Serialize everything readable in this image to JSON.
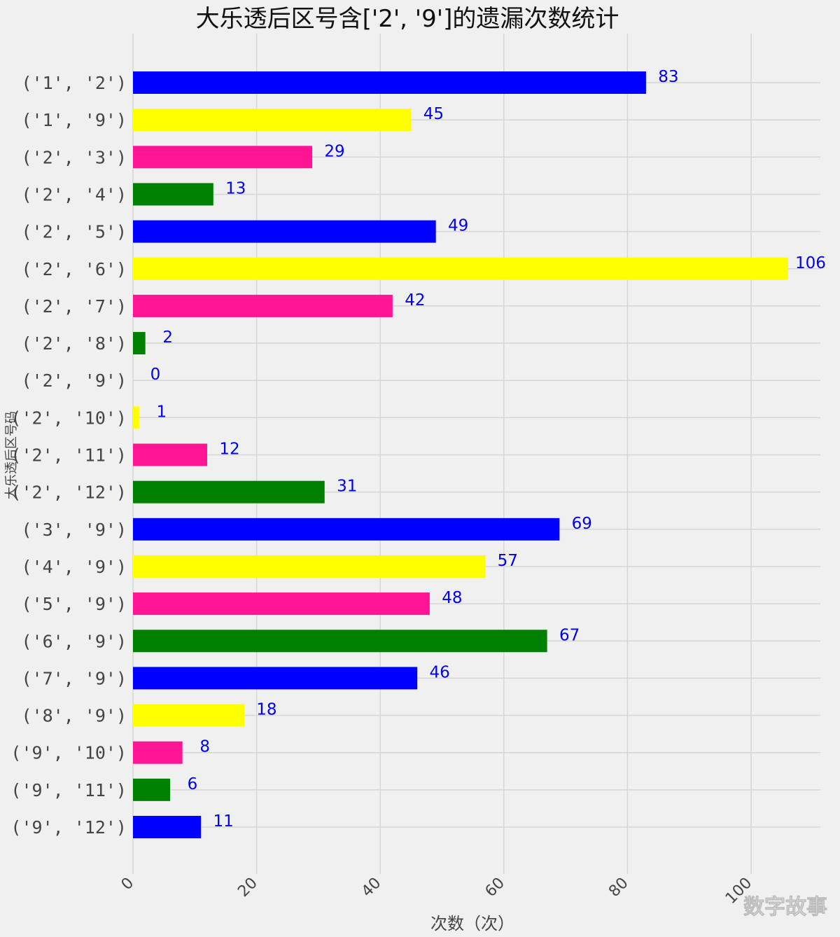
{
  "chart_data": {
    "type": "bar",
    "orientation": "horizontal",
    "title": "大乐透后区号含['2', '9']的遗漏次数统计",
    "xlabel": "次数（次）",
    "ylabel": "大乐透后区号码",
    "xlim": [
      0,
      111
    ],
    "xticks": [
      0,
      20,
      40,
      60,
      80,
      100
    ],
    "grid": true,
    "categories": [
      "('1', '2')",
      "('1', '9')",
      "('2', '3')",
      "('2', '4')",
      "('2', '5')",
      "('2', '6')",
      "('2', '7')",
      "('2', '8')",
      "('2', '9')",
      "('2', '10')",
      "('2', '11')",
      "('2', '12')",
      "('3', '9')",
      "('4', '9')",
      "('5', '9')",
      "('6', '9')",
      "('7', '9')",
      "('8', '9')",
      "('9', '10')",
      "('9', '11')",
      "('9', '12')"
    ],
    "values": [
      83,
      45,
      29,
      13,
      49,
      106,
      42,
      2,
      0,
      1,
      12,
      31,
      69,
      57,
      48,
      67,
      46,
      18,
      8,
      6,
      11
    ],
    "bar_colors": [
      "#0000ff",
      "#ffff00",
      "#ff1493",
      "#008000"
    ],
    "label_color": "#0000ee"
  },
  "watermark": "数字故事"
}
